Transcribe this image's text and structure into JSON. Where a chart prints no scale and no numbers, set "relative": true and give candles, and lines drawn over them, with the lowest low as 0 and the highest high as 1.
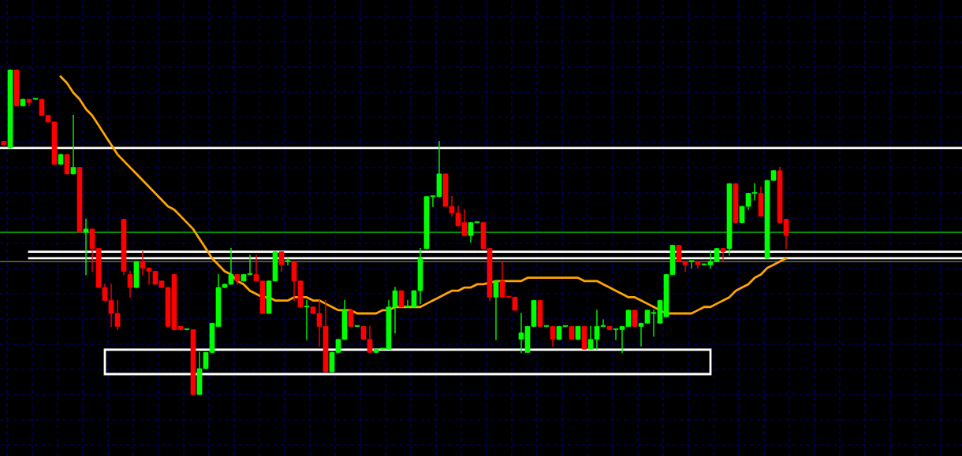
{
  "chart_data": {
    "type": "candlestick",
    "relative": true,
    "grid": true,
    "categories": [
      null,
      null,
      null,
      null,
      null,
      null,
      null,
      null,
      null,
      null,
      null,
      null,
      null,
      null,
      null,
      null,
      null,
      null,
      null,
      null,
      null,
      null,
      null,
      null,
      null,
      null,
      null,
      null,
      null,
      null,
      null,
      null,
      null,
      null,
      null,
      null,
      null,
      null,
      null,
      null,
      null,
      null,
      null,
      null,
      null,
      null,
      null,
      null,
      null,
      null,
      null,
      null,
      null,
      null,
      null,
      null,
      null,
      null,
      null,
      null,
      null,
      null,
      null,
      null,
      null,
      null,
      null,
      null,
      null,
      null,
      null,
      null,
      null,
      null,
      null,
      null,
      null,
      null,
      null,
      null,
      null,
      null,
      null,
      null,
      null,
      null,
      null,
      null,
      null,
      null,
      null,
      null,
      null,
      null,
      null,
      null,
      null,
      null,
      null,
      null,
      null,
      null,
      null,
      null,
      null,
      null,
      null,
      null,
      null,
      null,
      null,
      null,
      null,
      null,
      null,
      null,
      null,
      null,
      null,
      null,
      null,
      null,
      null,
      null,
      null
    ],
    "ohlc": [
      [
        0.78,
        0.78,
        0.77,
        0.77
      ],
      [
        0.76,
        1,
        0.76,
        1
      ],
      [
        1,
        1,
        0.89,
        0.89
      ],
      [
        0.89,
        0.91,
        0.89,
        0.91
      ],
      [
        0.91,
        0.91,
        0.89,
        0.9
      ],
      [
        0.91,
        0.91,
        0.91,
        0.91
      ],
      [
        0.91,
        0.91,
        0.86,
        0.86
      ],
      [
        0.86,
        0.86,
        0.84,
        0.84
      ],
      [
        0.84,
        0.84,
        0.71,
        0.71
      ],
      [
        0.71,
        0.74,
        0.71,
        0.74
      ],
      [
        0.74,
        0.74,
        0.68,
        0.68
      ],
      [
        0.68,
        0.86,
        0.68,
        0.7
      ],
      [
        0.7,
        0.7,
        0.5,
        0.5
      ],
      [
        0.5,
        0.54,
        0.37,
        0.51
      ],
      [
        0.51,
        0.51,
        0.38,
        0.45
      ],
      [
        0.45,
        0.45,
        0.33,
        0.33
      ],
      [
        0.33,
        0.34,
        0.29,
        0.29
      ],
      [
        0.29,
        0.34,
        0.21,
        0.25
      ],
      [
        0.25,
        0.29,
        0.2,
        0.21
      ],
      [
        0.54,
        0.54,
        0.37,
        0.38
      ],
      [
        0.37,
        0.38,
        0.3,
        0.33
      ],
      [
        0.33,
        0.41,
        0.33,
        0.41
      ],
      [
        0.41,
        0.44,
        0.37,
        0.39
      ],
      [
        0.39,
        0.39,
        0.34,
        0.38
      ],
      [
        0.38,
        0.38,
        0.34,
        0.34
      ],
      [
        0.35,
        0.35,
        0.33,
        0.33
      ],
      [
        0.33,
        0.33,
        0.21,
        0.21
      ],
      [
        0.37,
        0.37,
        0.2,
        0.2
      ],
      [
        0.21,
        0.21,
        0.2,
        0.2
      ],
      [
        0.2,
        0.2,
        0.2,
        0.2
      ],
      [
        0.2,
        0.2,
        0,
        0
      ],
      [
        0,
        0.13,
        0,
        0.08
      ],
      [
        0.08,
        0.13,
        0.08,
        0.13
      ],
      [
        0.13,
        0.22,
        0.13,
        0.22
      ],
      [
        0.21,
        0.37,
        0.21,
        0.33
      ],
      [
        0.33,
        0.34,
        0.33,
        0.34
      ],
      [
        0.34,
        0.45,
        0.34,
        0.37
      ],
      [
        0.37,
        0.37,
        0.34,
        0.35
      ],
      [
        0.35,
        0.37,
        0.35,
        0.37
      ],
      [
        0.37,
        0.43,
        0.37,
        0.37
      ],
      [
        0.37,
        0.43,
        0.35,
        0.35
      ],
      [
        0.35,
        0.35,
        0.25,
        0.25
      ],
      [
        0.25,
        0.35,
        0.25,
        0.35
      ],
      [
        0.35,
        0.44,
        0.35,
        0.44
      ],
      [
        0.44,
        0.44,
        0.38,
        0.4
      ],
      [
        0.41,
        0.42,
        0.4,
        0.41
      ],
      [
        0.41,
        0.41,
        0.29,
        0.35
      ],
      [
        0.35,
        0.35,
        0.27,
        0.27
      ],
      [
        0.27,
        0.29,
        0.17,
        0.27
      ],
      [
        0.27,
        0.27,
        0.25,
        0.25
      ],
      [
        0.25,
        0.29,
        0.15,
        0.21
      ],
      [
        0.21,
        0.29,
        0.07,
        0.07
      ],
      [
        0.07,
        0.13,
        0.07,
        0.13
      ],
      [
        0.13,
        0.17,
        0.13,
        0.17
      ],
      [
        0.17,
        0.29,
        0.17,
        0.26
      ],
      [
        0.26,
        0.26,
        0.21,
        0.21
      ],
      [
        0.21,
        0.21,
        0.21,
        0.21
      ],
      [
        0.21,
        0.21,
        0.17,
        0.17
      ],
      [
        0.17,
        0.21,
        0.13,
        0.13
      ],
      [
        0.13,
        0.14,
        0.13,
        0.14
      ],
      [
        0.14,
        0.14,
        0.14,
        0.14
      ],
      [
        0.14,
        0.29,
        0.14,
        0.27
      ],
      [
        0.27,
        0.33,
        0.19,
        0.32
      ],
      [
        0.32,
        0.32,
        0.27,
        0.27
      ],
      [
        0.27,
        0.29,
        0.27,
        0.27
      ],
      [
        0.27,
        0.32,
        0.27,
        0.32
      ],
      [
        0.32,
        0.45,
        0.28,
        0.42
      ],
      [
        0.45,
        0.61,
        0.45,
        0.61
      ],
      [
        0.61,
        0.61,
        0.58,
        0.61
      ],
      [
        0.61,
        0.78,
        0.61,
        0.68
      ],
      [
        0.68,
        0.68,
        0.58,
        0.58
      ],
      [
        0.58,
        0.61,
        0.55,
        0.56
      ],
      [
        0.56,
        0.58,
        0.52,
        0.52
      ],
      [
        0.53,
        0.57,
        0.49,
        0.49
      ],
      [
        0.49,
        0.53,
        0.47,
        0.53
      ],
      [
        0.53,
        0.53,
        0.53,
        0.53
      ],
      [
        0.53,
        0.53,
        0.45,
        0.45
      ],
      [
        0.45,
        0.45,
        0.29,
        0.3
      ],
      [
        0.3,
        0.35,
        0.17,
        0.35
      ],
      [
        0.35,
        0.41,
        0.3,
        0.3
      ],
      [
        0.3,
        0.3,
        0.3,
        0.3
      ],
      [
        0.3,
        0.3,
        0.26,
        0.26
      ],
      [
        0.17,
        0.25,
        0.13,
        0.19
      ],
      [
        0.13,
        0.21,
        0.13,
        0.21
      ],
      [
        0.21,
        0.29,
        0.21,
        0.29
      ],
      [
        0.29,
        0.29,
        0.21,
        0.21
      ],
      [
        0.21,
        0.21,
        0.21,
        0.21
      ],
      [
        0.21,
        0.21,
        0.15,
        0.17
      ],
      [
        0.17,
        0.21,
        0.17,
        0.21
      ],
      [
        0.21,
        0.21,
        0.21,
        0.21
      ],
      [
        0.21,
        0.21,
        0.17,
        0.17
      ],
      [
        0.17,
        0.21,
        0.17,
        0.21
      ],
      [
        0.21,
        0.21,
        0.14,
        0.14
      ],
      [
        0.14,
        0.21,
        0.14,
        0.17
      ],
      [
        0.17,
        0.26,
        0.14,
        0.21
      ],
      [
        0.21,
        0.23,
        0.21,
        0.21
      ],
      [
        0.21,
        0.21,
        0.2,
        0.2
      ],
      [
        0.2,
        0.2,
        0.17,
        0.2
      ],
      [
        0.2,
        0.21,
        0.13,
        0.21
      ],
      [
        0.21,
        0.26,
        0.21,
        0.26
      ],
      [
        0.26,
        0.26,
        0.21,
        0.21
      ],
      [
        0.21,
        0.22,
        0.15,
        0.22
      ],
      [
        0.22,
        0.26,
        0.22,
        0.26
      ],
      [
        0.25,
        0.26,
        0.18,
        0.25
      ],
      [
        0.22,
        0.29,
        0.22,
        0.29
      ],
      [
        0.24,
        0.37,
        0.24,
        0.37
      ],
      [
        0.37,
        0.46,
        0.37,
        0.46
      ],
      [
        0.46,
        0.46,
        0.41,
        0.41
      ],
      [
        0.41,
        0.41,
        0.38,
        0.4
      ],
      [
        0.41,
        0.41,
        0.39,
        0.41
      ],
      [
        0.41,
        0.41,
        0.39,
        0.4
      ],
      [
        0.4,
        0.4,
        0.4,
        0.4
      ],
      [
        0.4,
        0.44,
        0.39,
        0.41
      ],
      [
        0.41,
        0.45,
        0.41,
        0.45
      ],
      [
        0.45,
        0.45,
        0.41,
        0.44
      ],
      [
        0.45,
        0.65,
        0.43,
        0.65
      ],
      [
        0.65,
        0.65,
        0.53,
        0.53
      ],
      [
        0.53,
        0.58,
        0.53,
        0.58
      ],
      [
        0.58,
        0.62,
        0.57,
        0.62
      ],
      [
        0.62,
        0.65,
        0.6,
        0.62
      ],
      [
        0.62,
        0.64,
        0.55,
        0.55
      ],
      [
        0.42,
        0.66,
        0.42,
        0.66
      ],
      [
        0.66,
        0.69,
        0.66,
        0.69
      ],
      [
        0.69,
        0.7,
        0.53,
        0.53
      ],
      [
        0.54,
        0.54,
        0.45,
        0.49
      ]
    ],
    "colors": [
      "#ff0000",
      "#00ff00",
      "#ff0000",
      "#00ff00",
      "#ff0000",
      "#00ff00",
      "#ff0000",
      "#ff0000",
      "#ff0000",
      "#00ff00",
      "#ff0000",
      "#00ff00",
      "#ff0000",
      "#00ff00",
      "#ff0000",
      "#ff0000",
      "#ff0000",
      "#ff0000",
      "#ff0000",
      "#ff0000",
      "#ff0000",
      "#00ff00",
      "#ff0000",
      "#ff0000",
      "#ff0000",
      "#ff0000",
      "#ff0000",
      "#ff0000",
      "#ff0000",
      "#00ff00",
      "#ff0000",
      "#00ff00",
      "#00ff00",
      "#00ff00",
      "#00ff00",
      "#00ff00",
      "#00ff00",
      "#ff0000",
      "#00ff00",
      "#00ff00",
      "#ff0000",
      "#ff0000",
      "#00ff00",
      "#00ff00",
      "#ff0000",
      "#00ff00",
      "#ff0000",
      "#ff0000",
      "#00ff00",
      "#ff0000",
      "#ff0000",
      "#ff0000",
      "#00ff00",
      "#00ff00",
      "#00ff00",
      "#ff0000",
      "#00ff00",
      "#ff0000",
      "#ff0000",
      "#00ff00",
      "#00ff00",
      "#00ff00",
      "#00ff00",
      "#ff0000",
      "#00ff00",
      "#00ff00",
      "#00ff00",
      "#00ff00",
      "#00ff00",
      "#00ff00",
      "#ff0000",
      "#ff0000",
      "#ff0000",
      "#ff0000",
      "#00ff00",
      "#00ff00",
      "#ff0000",
      "#ff0000",
      "#00ff00",
      "#ff0000",
      "#ff0000",
      "#ff0000",
      "#00ff00",
      "#00ff00",
      "#00ff00",
      "#ff0000",
      "#00ff00",
      "#ff0000",
      "#00ff00",
      "#00ff00",
      "#ff0000",
      "#00ff00",
      "#ff0000",
      "#00ff00",
      "#00ff00",
      "#00ff00",
      "#ff0000",
      "#00ff00",
      "#00ff00",
      "#00ff00",
      "#ff0000",
      "#00ff00",
      "#00ff00",
      "#00ff00",
      "#00ff00",
      "#00ff00",
      "#00ff00",
      "#ff0000",
      "#ff0000",
      "#00ff00",
      "#ff0000",
      "#00ff00",
      "#00ff00",
      "#00ff00",
      "#ff0000",
      "#00ff00",
      "#ff0000",
      "#00ff00",
      "#00ff00",
      "#00ff00",
      "#ff0000",
      "#00ff00",
      "#00ff00",
      "#ff0000",
      "#ff0000"
    ],
    "series": [
      {
        "type": "line",
        "color": "#ffa500",
        "values": [
          null,
          null,
          null,
          null,
          null,
          null,
          null,
          null,
          null,
          0.98,
          0.96,
          0.93,
          0.91,
          0.88,
          0.86,
          0.83,
          0.8,
          0.77,
          0.74,
          0.72,
          0.7,
          0.68,
          0.66,
          0.64,
          0.62,
          0.6,
          0.58,
          0.57,
          0.55,
          0.53,
          0.51,
          0.48,
          0.45,
          0.42,
          0.4,
          0.38,
          0.37,
          0.35,
          0.34,
          0.32,
          0.31,
          0.3,
          0.3,
          0.29,
          0.29,
          0.29,
          0.3,
          0.3,
          0.3,
          0.29,
          0.29,
          0.28,
          0.27,
          0.26,
          0.26,
          0.26,
          0.25,
          0.25,
          0.25,
          0.25,
          0.26,
          0.26,
          0.27,
          0.27,
          0.27,
          0.27,
          0.27,
          0.28,
          0.29,
          0.3,
          0.31,
          0.32,
          0.32,
          0.33,
          0.33,
          0.34,
          0.34,
          null,
          0.35,
          0.35,
          0.35,
          0.35,
          0.35,
          0.36,
          0.36,
          0.36,
          0.36,
          0.36,
          0.36,
          0.36,
          0.36,
          0.36,
          0.35,
          0.35,
          0.35,
          0.34,
          0.33,
          0.32,
          0.31,
          0.3,
          0.3,
          0.29,
          0.28,
          0.27,
          0.26,
          0.25,
          0.25,
          0.25,
          0.25,
          0.25,
          0.26,
          0.27,
          0.27,
          0.28,
          0.29,
          0.3,
          0.32,
          0.33,
          0.34,
          0.36,
          0.37,
          0.39,
          0.4,
          0.41,
          0.42
        ]
      }
    ],
    "ref_lines": [
      {
        "axis": "y",
        "value": 0.76,
        "color": "#ffffff"
      },
      {
        "axis": "y",
        "value": 0.5,
        "color": "#00c000"
      },
      {
        "axis": "y",
        "value": 0.41,
        "color": "#808080"
      },
      {
        "axis": "y",
        "value": 0.44,
        "color": "#ffffff"
      },
      {
        "axis": "y",
        "value": 0.42,
        "color": "#ffffff"
      }
    ]
  }
}
